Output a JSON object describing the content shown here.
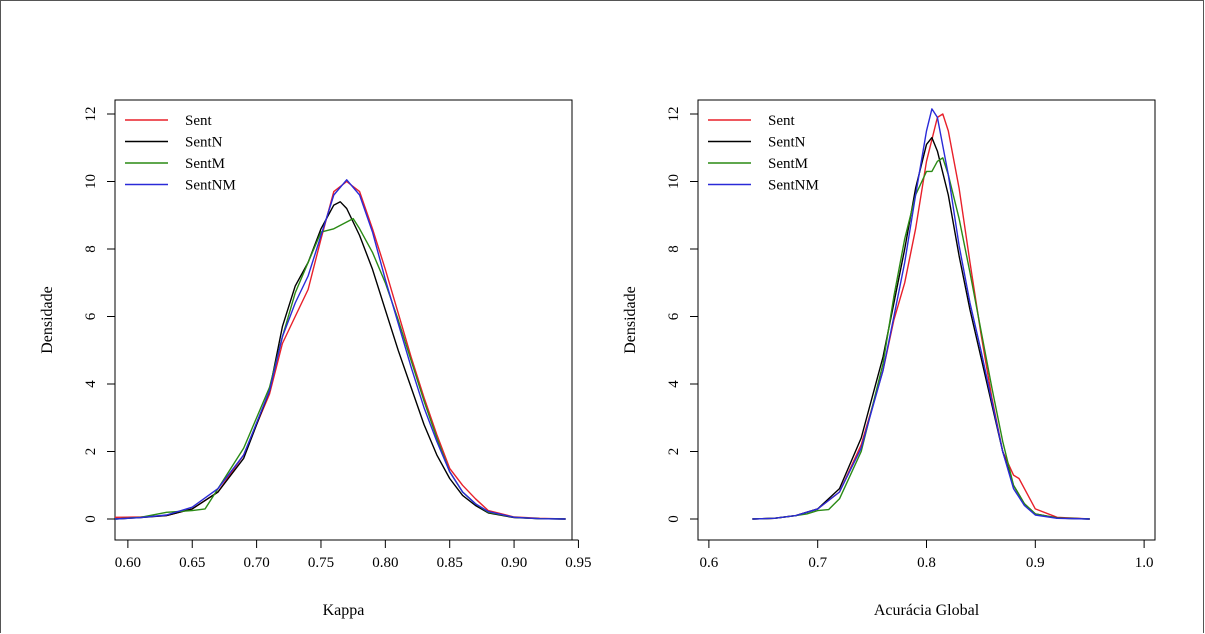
{
  "chart_data": [
    {
      "type": "line",
      "xlabel": "Kappa",
      "ylabel": "Densidade",
      "xlim": [
        0.59,
        0.945
      ],
      "ylim": [
        0,
        12
      ],
      "xticks": [
        "0.60",
        "0.65",
        "0.70",
        "0.75",
        "0.80",
        "0.85",
        "0.90",
        "0.95"
      ],
      "xtick_values": [
        0.6,
        0.65,
        0.7,
        0.75,
        0.8,
        0.85,
        0.9,
        0.95
      ],
      "yticks": [
        "0",
        "2",
        "4",
        "6",
        "8",
        "10",
        "12"
      ],
      "ytick_values": [
        0,
        2,
        4,
        6,
        8,
        10,
        12
      ],
      "legend_position": "top-left",
      "series": [
        {
          "name": "Sent",
          "color": "#e8202a",
          "x": [
            0.59,
            0.61,
            0.63,
            0.65,
            0.67,
            0.69,
            0.71,
            0.72,
            0.73,
            0.74,
            0.75,
            0.76,
            0.77,
            0.78,
            0.79,
            0.8,
            0.81,
            0.82,
            0.83,
            0.84,
            0.85,
            0.86,
            0.87,
            0.88,
            0.9,
            0.92,
            0.94
          ],
          "y": [
            0.05,
            0.06,
            0.1,
            0.3,
            0.8,
            1.9,
            3.7,
            5.2,
            6.0,
            6.8,
            8.3,
            9.7,
            10.0,
            9.7,
            8.6,
            7.4,
            6.1,
            4.8,
            3.6,
            2.5,
            1.5,
            1.0,
            0.6,
            0.25,
            0.06,
            0.02,
            0.0
          ]
        },
        {
          "name": "SentN",
          "color": "#000000",
          "x": [
            0.59,
            0.61,
            0.63,
            0.65,
            0.67,
            0.69,
            0.71,
            0.72,
            0.73,
            0.74,
            0.75,
            0.76,
            0.765,
            0.77,
            0.78,
            0.79,
            0.8,
            0.81,
            0.82,
            0.83,
            0.84,
            0.85,
            0.86,
            0.87,
            0.88,
            0.9,
            0.92,
            0.94
          ],
          "y": [
            0.0,
            0.04,
            0.1,
            0.3,
            0.8,
            1.8,
            3.8,
            5.7,
            6.9,
            7.6,
            8.6,
            9.3,
            9.4,
            9.2,
            8.4,
            7.4,
            6.2,
            5.0,
            3.9,
            2.8,
            1.9,
            1.2,
            0.7,
            0.4,
            0.18,
            0.04,
            0.01,
            0.0
          ]
        },
        {
          "name": "SentM",
          "color": "#2a8a14",
          "x": [
            0.59,
            0.61,
            0.63,
            0.65,
            0.66,
            0.67,
            0.69,
            0.71,
            0.72,
            0.73,
            0.74,
            0.75,
            0.76,
            0.77,
            0.775,
            0.78,
            0.79,
            0.8,
            0.81,
            0.82,
            0.83,
            0.84,
            0.85,
            0.86,
            0.87,
            0.88,
            0.9,
            0.92,
            0.94
          ],
          "y": [
            0.0,
            0.05,
            0.2,
            0.25,
            0.3,
            0.9,
            2.1,
            3.9,
            5.4,
            6.7,
            7.6,
            8.5,
            8.6,
            8.8,
            8.9,
            8.6,
            7.9,
            7.0,
            5.9,
            4.7,
            3.5,
            2.4,
            1.4,
            0.8,
            0.45,
            0.2,
            0.05,
            0.01,
            0.0
          ]
        },
        {
          "name": "SentNM",
          "color": "#2a2ad8",
          "x": [
            0.59,
            0.61,
            0.63,
            0.65,
            0.67,
            0.69,
            0.71,
            0.72,
            0.73,
            0.74,
            0.75,
            0.76,
            0.77,
            0.78,
            0.79,
            0.8,
            0.81,
            0.82,
            0.83,
            0.84,
            0.85,
            0.86,
            0.87,
            0.88,
            0.9,
            0.92,
            0.94
          ],
          "y": [
            0.0,
            0.04,
            0.12,
            0.35,
            0.9,
            1.9,
            3.8,
            5.4,
            6.4,
            7.2,
            8.4,
            9.6,
            10.05,
            9.6,
            8.5,
            7.1,
            5.8,
            4.5,
            3.3,
            2.3,
            1.4,
            0.8,
            0.45,
            0.22,
            0.05,
            0.01,
            0.0
          ]
        }
      ]
    },
    {
      "type": "line",
      "xlabel": "Acurácia Global",
      "ylabel": "Densidade",
      "xlim": [
        0.59,
        1.01
      ],
      "ylim": [
        0,
        12
      ],
      "xticks": [
        "0.6",
        "0.7",
        "0.8",
        "0.9",
        "1.0"
      ],
      "xtick_values": [
        0.6,
        0.7,
        0.8,
        0.9,
        1.0
      ],
      "yticks": [
        "0",
        "2",
        "4",
        "6",
        "8",
        "10",
        "12"
      ],
      "ytick_values": [
        0,
        2,
        4,
        6,
        8,
        10,
        12
      ],
      "legend_position": "top-left",
      "series": [
        {
          "name": "Sent",
          "color": "#e8202a",
          "x": [
            0.64,
            0.66,
            0.68,
            0.7,
            0.72,
            0.74,
            0.76,
            0.77,
            0.78,
            0.79,
            0.8,
            0.81,
            0.815,
            0.82,
            0.83,
            0.84,
            0.85,
            0.86,
            0.87,
            0.88,
            0.885,
            0.89,
            0.9,
            0.92,
            0.95
          ],
          "y": [
            0.0,
            0.02,
            0.1,
            0.3,
            0.8,
            2.2,
            4.4,
            5.9,
            7.0,
            8.6,
            10.6,
            11.9,
            12.0,
            11.5,
            9.8,
            7.6,
            5.5,
            3.6,
            2.0,
            1.3,
            1.2,
            0.9,
            0.3,
            0.05,
            0.0
          ]
        },
        {
          "name": "SentN",
          "color": "#000000",
          "x": [
            0.64,
            0.66,
            0.68,
            0.7,
            0.72,
            0.74,
            0.76,
            0.77,
            0.78,
            0.79,
            0.8,
            0.805,
            0.81,
            0.82,
            0.83,
            0.84,
            0.85,
            0.86,
            0.87,
            0.88,
            0.89,
            0.9,
            0.92,
            0.95
          ],
          "y": [
            0.0,
            0.02,
            0.1,
            0.3,
            0.9,
            2.4,
            4.8,
            6.4,
            8.0,
            9.8,
            11.1,
            11.3,
            10.9,
            9.6,
            7.8,
            6.2,
            4.8,
            3.4,
            2.0,
            1.0,
            0.45,
            0.15,
            0.03,
            0.0
          ]
        },
        {
          "name": "SentM",
          "color": "#2a8a14",
          "x": [
            0.64,
            0.66,
            0.68,
            0.69,
            0.7,
            0.71,
            0.72,
            0.74,
            0.76,
            0.77,
            0.78,
            0.79,
            0.8,
            0.805,
            0.81,
            0.815,
            0.82,
            0.83,
            0.84,
            0.85,
            0.86,
            0.87,
            0.88,
            0.89,
            0.9,
            0.92,
            0.95
          ],
          "y": [
            0.0,
            0.02,
            0.1,
            0.15,
            0.25,
            0.28,
            0.6,
            2.0,
            4.6,
            6.6,
            8.3,
            9.6,
            10.3,
            10.3,
            10.6,
            10.7,
            10.2,
            8.9,
            7.3,
            5.6,
            3.9,
            2.3,
            1.0,
            0.45,
            0.15,
            0.03,
            0.0
          ]
        },
        {
          "name": "SentNM",
          "color": "#2a2ad8",
          "x": [
            0.64,
            0.66,
            0.68,
            0.7,
            0.72,
            0.74,
            0.76,
            0.77,
            0.78,
            0.79,
            0.8,
            0.805,
            0.81,
            0.82,
            0.83,
            0.84,
            0.85,
            0.86,
            0.87,
            0.88,
            0.89,
            0.9,
            0.92,
            0.95
          ],
          "y": [
            0.0,
            0.02,
            0.1,
            0.3,
            0.8,
            2.1,
            4.4,
            6.0,
            7.6,
            9.6,
            11.5,
            12.15,
            11.9,
            10.2,
            8.1,
            6.4,
            5.0,
            3.5,
            2.0,
            0.9,
            0.4,
            0.12,
            0.02,
            0.0
          ]
        }
      ]
    }
  ]
}
